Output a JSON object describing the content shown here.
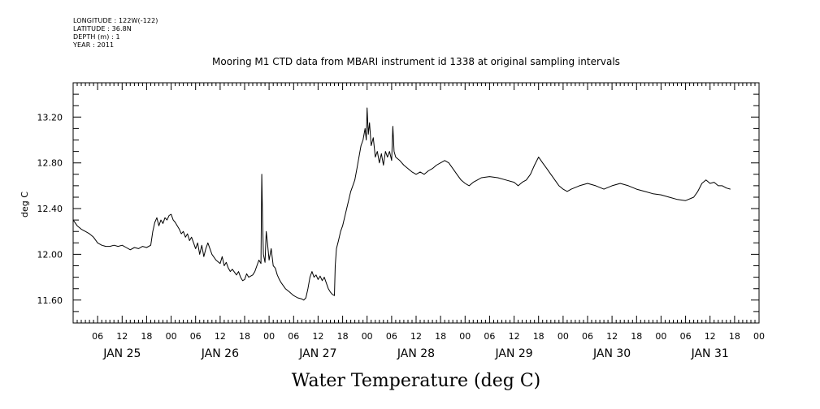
{
  "header": {
    "lines": [
      "LONGITUDE : 122W(-122)",
      "LATITUDE : 36.8N",
      "DEPTH (m) : 1",
      "YEAR : 2011"
    ]
  },
  "chart_data": {
    "type": "line",
    "title": "Mooring M1 CTD data from MBARI instrument id 1338 at original sampling intervals",
    "ylabel": "deg C",
    "footer": "Water Temperature (deg C)",
    "ylim": [
      11.4,
      13.5
    ],
    "xlim_hours": [
      0,
      168
    ],
    "y_ticks": [
      "11.60",
      "12.00",
      "12.40",
      "12.80",
      "13.20"
    ],
    "x_hour_labels": [
      "06",
      "12",
      "18",
      "00"
    ],
    "x_day_labels": [
      "JAN 25",
      "JAN 26",
      "JAN 27",
      "JAN 28",
      "JAN 29",
      "JAN 30",
      "JAN 31"
    ],
    "series": [
      {
        "color": "#000000",
        "points": [
          [
            0,
            12.3
          ],
          [
            1,
            12.25
          ],
          [
            2,
            12.22
          ],
          [
            3,
            12.2
          ],
          [
            4,
            12.18
          ],
          [
            5,
            12.15
          ],
          [
            6,
            12.1
          ],
          [
            7,
            12.08
          ],
          [
            8,
            12.07
          ],
          [
            9,
            12.07
          ],
          [
            10,
            12.08
          ],
          [
            11,
            12.07
          ],
          [
            12,
            12.08
          ],
          [
            13,
            12.06
          ],
          [
            14,
            12.04
          ],
          [
            15,
            12.06
          ],
          [
            16,
            12.05
          ],
          [
            17,
            12.07
          ],
          [
            18,
            12.06
          ],
          [
            19,
            12.08
          ],
          [
            19.5,
            12.2
          ],
          [
            20,
            12.28
          ],
          [
            20.5,
            12.32
          ],
          [
            21,
            12.25
          ],
          [
            21.5,
            12.3
          ],
          [
            22,
            12.27
          ],
          [
            22.5,
            12.32
          ],
          [
            23,
            12.3
          ],
          [
            23.5,
            12.34
          ],
          [
            24,
            12.35
          ],
          [
            24.5,
            12.3
          ],
          [
            25,
            12.28
          ],
          [
            25.5,
            12.25
          ],
          [
            26,
            12.22
          ],
          [
            26.5,
            12.18
          ],
          [
            27,
            12.2
          ],
          [
            27.5,
            12.15
          ],
          [
            28,
            12.18
          ],
          [
            28.5,
            12.12
          ],
          [
            29,
            12.15
          ],
          [
            29.5,
            12.1
          ],
          [
            30,
            12.05
          ],
          [
            30.5,
            12.1
          ],
          [
            31,
            12.0
          ],
          [
            31.5,
            12.08
          ],
          [
            32,
            11.98
          ],
          [
            32.5,
            12.05
          ],
          [
            33,
            12.1
          ],
          [
            33.5,
            12.05
          ],
          [
            34,
            12.0
          ],
          [
            35,
            11.95
          ],
          [
            36,
            11.92
          ],
          [
            36.5,
            11.98
          ],
          [
            37,
            11.9
          ],
          [
            37.5,
            11.93
          ],
          [
            38,
            11.88
          ],
          [
            38.5,
            11.85
          ],
          [
            39,
            11.87
          ],
          [
            40,
            11.82
          ],
          [
            40.5,
            11.85
          ],
          [
            41,
            11.8
          ],
          [
            41.5,
            11.77
          ],
          [
            42,
            11.78
          ],
          [
            42.5,
            11.83
          ],
          [
            43,
            11.8
          ],
          [
            44,
            11.82
          ],
          [
            44.5,
            11.85
          ],
          [
            45,
            11.9
          ],
          [
            45.5,
            11.95
          ],
          [
            46,
            11.92
          ],
          [
            46.2,
            12.7
          ],
          [
            46.4,
            12.3
          ],
          [
            46.6,
            12.0
          ],
          [
            47,
            11.93
          ],
          [
            47.3,
            12.2
          ],
          [
            47.6,
            12.1
          ],
          [
            48,
            11.95
          ],
          [
            48.5,
            12.05
          ],
          [
            49,
            11.9
          ],
          [
            49.5,
            11.88
          ],
          [
            50,
            11.82
          ],
          [
            50.5,
            11.78
          ],
          [
            51,
            11.75
          ],
          [
            52,
            11.7
          ],
          [
            53,
            11.67
          ],
          [
            54,
            11.64
          ],
          [
            55,
            11.62
          ],
          [
            56,
            11.61
          ],
          [
            56.5,
            11.6
          ],
          [
            57,
            11.62
          ],
          [
            57.5,
            11.7
          ],
          [
            58,
            11.8
          ],
          [
            58.5,
            11.85
          ],
          [
            59,
            11.8
          ],
          [
            59.5,
            11.82
          ],
          [
            60,
            11.78
          ],
          [
            60.5,
            11.81
          ],
          [
            61,
            11.77
          ],
          [
            61.5,
            11.8
          ],
          [
            62,
            11.75
          ],
          [
            62.5,
            11.7
          ],
          [
            63,
            11.67
          ],
          [
            63.5,
            11.65
          ],
          [
            64,
            11.64
          ],
          [
            64.2,
            11.9
          ],
          [
            64.5,
            12.05
          ],
          [
            65,
            12.12
          ],
          [
            65.5,
            12.2
          ],
          [
            66,
            12.25
          ],
          [
            67,
            12.4
          ],
          [
            68,
            12.55
          ],
          [
            68.5,
            12.6
          ],
          [
            69,
            12.65
          ],
          [
            69.5,
            12.75
          ],
          [
            70,
            12.85
          ],
          [
            70.5,
            12.95
          ],
          [
            71,
            13.0
          ],
          [
            71.5,
            13.1
          ],
          [
            71.8,
            13.0
          ],
          [
            72,
            13.28
          ],
          [
            72.3,
            13.05
          ],
          [
            72.6,
            13.15
          ],
          [
            73,
            12.95
          ],
          [
            73.5,
            13.02
          ],
          [
            74,
            12.85
          ],
          [
            74.5,
            12.9
          ],
          [
            75,
            12.8
          ],
          [
            75.5,
            12.88
          ],
          [
            76,
            12.78
          ],
          [
            76.5,
            12.9
          ],
          [
            77,
            12.85
          ],
          [
            77.5,
            12.9
          ],
          [
            78,
            12.82
          ],
          [
            78.3,
            13.12
          ],
          [
            78.6,
            12.9
          ],
          [
            79,
            12.85
          ],
          [
            80,
            12.82
          ],
          [
            81,
            12.78
          ],
          [
            82,
            12.75
          ],
          [
            83,
            12.72
          ],
          [
            84,
            12.7
          ],
          [
            85,
            12.72
          ],
          [
            86,
            12.7
          ],
          [
            87,
            12.73
          ],
          [
            88,
            12.75
          ],
          [
            89,
            12.78
          ],
          [
            90,
            12.8
          ],
          [
            91,
            12.82
          ],
          [
            92,
            12.8
          ],
          [
            93,
            12.75
          ],
          [
            94,
            12.7
          ],
          [
            95,
            12.65
          ],
          [
            96,
            12.62
          ],
          [
            97,
            12.6
          ],
          [
            98,
            12.63
          ],
          [
            99,
            12.65
          ],
          [
            100,
            12.67
          ],
          [
            102,
            12.68
          ],
          [
            104,
            12.67
          ],
          [
            106,
            12.65
          ],
          [
            108,
            12.63
          ],
          [
            109,
            12.6
          ],
          [
            110,
            12.63
          ],
          [
            111,
            12.65
          ],
          [
            112,
            12.7
          ],
          [
            113,
            12.78
          ],
          [
            114,
            12.85
          ],
          [
            115,
            12.8
          ],
          [
            116,
            12.75
          ],
          [
            117,
            12.7
          ],
          [
            118,
            12.65
          ],
          [
            119,
            12.6
          ],
          [
            120,
            12.57
          ],
          [
            121,
            12.55
          ],
          [
            122,
            12.57
          ],
          [
            124,
            12.6
          ],
          [
            126,
            12.62
          ],
          [
            128,
            12.6
          ],
          [
            130,
            12.57
          ],
          [
            132,
            12.6
          ],
          [
            134,
            12.62
          ],
          [
            136,
            12.6
          ],
          [
            138,
            12.57
          ],
          [
            140,
            12.55
          ],
          [
            142,
            12.53
          ],
          [
            144,
            12.52
          ],
          [
            146,
            12.5
          ],
          [
            148,
            12.48
          ],
          [
            150,
            12.47
          ],
          [
            152,
            12.5
          ],
          [
            153,
            12.55
          ],
          [
            154,
            12.62
          ],
          [
            155,
            12.65
          ],
          [
            156,
            12.62
          ],
          [
            157,
            12.63
          ],
          [
            158,
            12.6
          ],
          [
            159,
            12.6
          ],
          [
            160,
            12.58
          ],
          [
            161,
            12.57
          ]
        ]
      }
    ]
  }
}
